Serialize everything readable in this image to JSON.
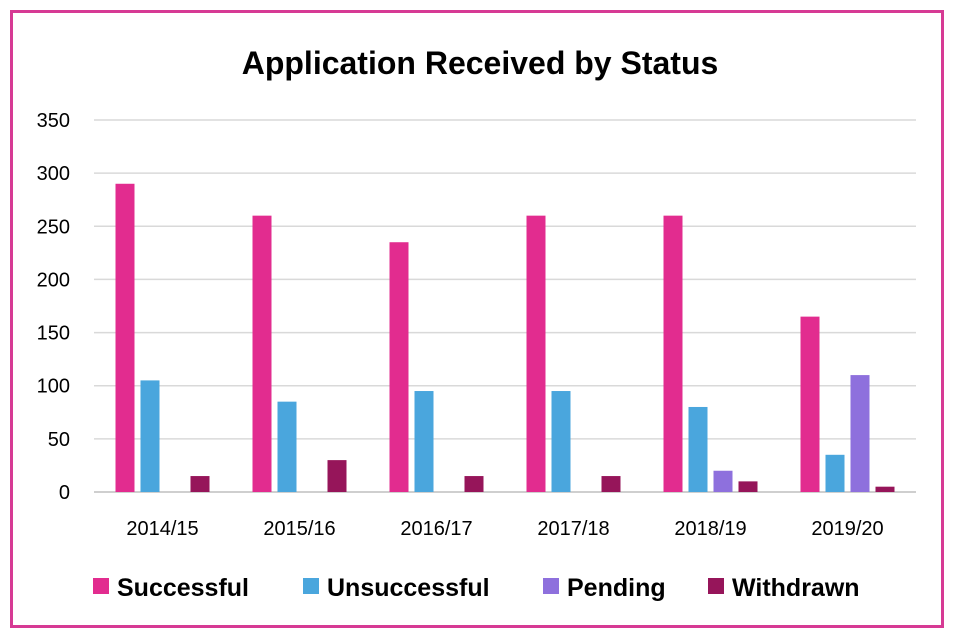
{
  "chart_data": {
    "type": "bar",
    "title": "Application Received by Status",
    "xlabel": "",
    "ylabel": "",
    "categories": [
      "2014/15",
      "2015/16",
      "2016/17",
      "2017/18",
      "2018/19",
      "2019/20"
    ],
    "series": [
      {
        "name": "Successful",
        "color": "#e22c8f",
        "values": [
          290,
          260,
          235,
          260,
          260,
          165
        ]
      },
      {
        "name": "Unsuccessful",
        "color": "#4aa6dd",
        "values": [
          105,
          85,
          95,
          95,
          80,
          35
        ]
      },
      {
        "name": "Pending",
        "color": "#8e70dd",
        "values": [
          0,
          0,
          0,
          0,
          20,
          110
        ]
      },
      {
        "name": "Withdrawn",
        "color": "#96155a",
        "values": [
          15,
          30,
          15,
          15,
          10,
          5
        ]
      }
    ],
    "ylim": [
      0,
      350
    ],
    "yticks": [
      0,
      50,
      100,
      150,
      200,
      250,
      300,
      350
    ],
    "grid": true,
    "legend_position": "bottom"
  },
  "colors": {
    "frame": "#d63a94",
    "grid": "#d9d9d9",
    "axis": "#bfbfbf"
  }
}
